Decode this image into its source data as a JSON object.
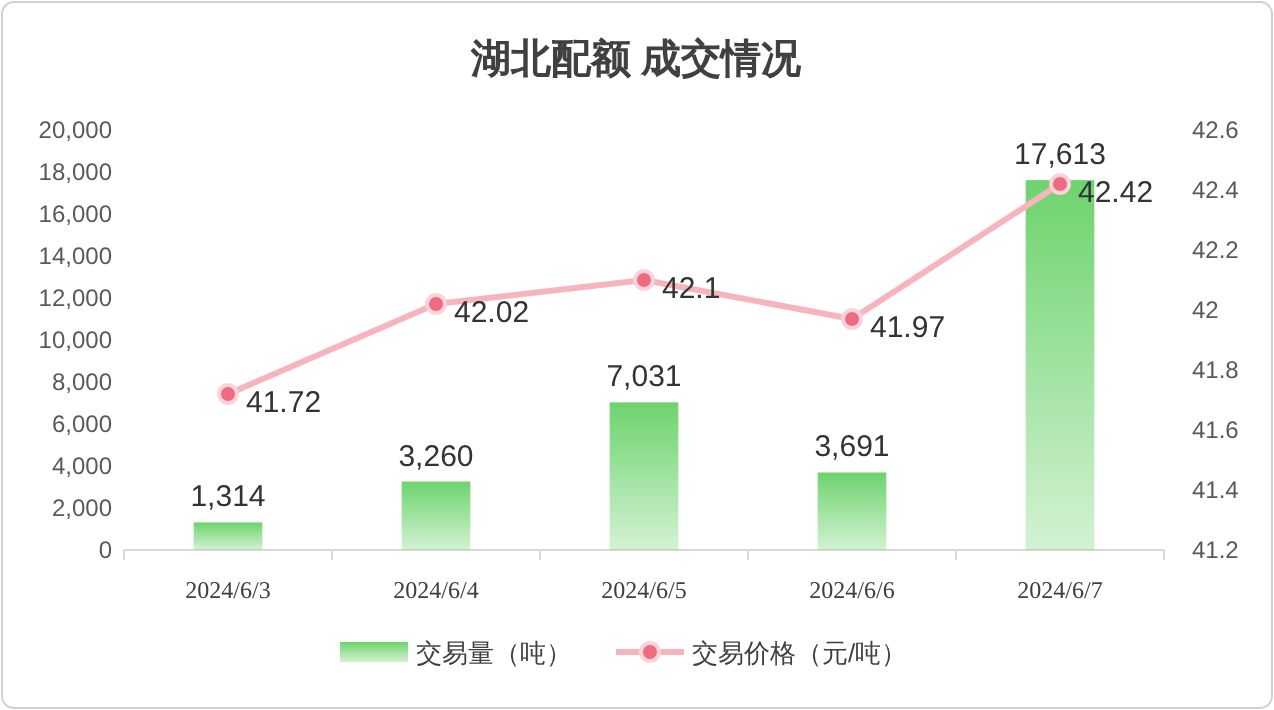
{
  "chart_data": {
    "type": "bar",
    "title": "湖北配额 成交情况",
    "categories": [
      "2024/6/3",
      "2024/6/4",
      "2024/6/5",
      "2024/6/6",
      "2024/6/7"
    ],
    "series": [
      {
        "name": "交易量（吨）",
        "color": "#6dd36d",
        "values": [
          1314,
          3260,
          7031,
          3691,
          17613
        ],
        "value_labels": [
          "1,314",
          "3,260",
          "7,031",
          "3,691",
          "17,613"
        ]
      },
      {
        "name": "交易价格（元/吨）",
        "type": "line",
        "axis": "y2",
        "color": "#f7b4be",
        "marker": "circle",
        "values": [
          41.72,
          42.02,
          42.1,
          41.97,
          42.42
        ],
        "data_labels": true
      }
    ],
    "ylim": [
      0,
      20000
    ],
    "yticks": [
      0,
      {
        "value": 2000,
        "label": "2,000"
      },
      {
        "value": 4000,
        "label": "4,000"
      },
      {
        "value": 6000,
        "label": "6,000"
      },
      {
        "value": 8000,
        "label": "8,000"
      },
      {
        "value": 10000,
        "label": "10,000"
      },
      {
        "value": 12000,
        "label": "12,000"
      },
      {
        "value": 14000,
        "label": "14,000"
      },
      {
        "value": 16000,
        "label": "16,000"
      },
      {
        "value": 18000,
        "label": "18,000"
      },
      {
        "value": 20000,
        "label": "20,000"
      }
    ],
    "y2lim": [
      41.2,
      42.6
    ],
    "y2ticks": [
      41.2,
      41.4,
      41.6,
      41.8,
      42,
      42.2,
      42.4,
      42.6
    ],
    "grid": false,
    "legend": "bottom"
  }
}
